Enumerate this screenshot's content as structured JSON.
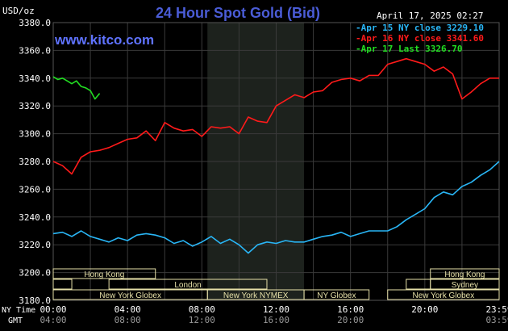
{
  "chart_data": {
    "type": "line",
    "title": "24 Hour Spot Gold (Bid)",
    "ylabel": "USD/oz",
    "watermark": "www.kitco.com",
    "timestamp": "April 17, 2025 02:27",
    "ylim": [
      3180,
      3380
    ],
    "y_ticks": [
      "3380.0",
      "3360.0",
      "3340.0",
      "3320.0",
      "3300.0",
      "3280.0",
      "3260.0",
      "3240.0",
      "3220.0",
      "3200.0",
      "3180.0"
    ],
    "x_ticks_ny": [
      "00:00",
      "04:00",
      "08:00",
      "12:00",
      "16:00",
      "20:00",
      "23:59"
    ],
    "x_ticks_gmt": [
      "04:00",
      "08:00",
      "12:00",
      "16:00",
      "20:00",
      "",
      "03:59"
    ],
    "x_label_ny": "NY Time",
    "x_label_gmt": "GMT",
    "grid": true,
    "legend_position": "top-right",
    "colors": {
      "background": "#000000",
      "grid": "#3a3a3a",
      "title": "#4a5cd6",
      "watermark": "#5f73ff",
      "session_bar": "#e6e0a8"
    },
    "series": [
      {
        "name": "Apr 15 NY close 3229.10",
        "color": "#29b6f6",
        "x": [
          0,
          0.5,
          1,
          1.5,
          2,
          2.5,
          3,
          3.5,
          4,
          4.5,
          5,
          5.5,
          6,
          6.5,
          7,
          7.5,
          8,
          8.5,
          9,
          9.5,
          10,
          10.5,
          11,
          11.5,
          12,
          12.5,
          13,
          13.5,
          14,
          14.5,
          15,
          15.5,
          16,
          16.5,
          17,
          17.5,
          18,
          18.5,
          19,
          19.5,
          20,
          20.5,
          21,
          21.5,
          22,
          22.5,
          23,
          23.5,
          24
        ],
        "y": [
          3228,
          3229,
          3226,
          3230,
          3226,
          3224,
          3222,
          3225,
          3223,
          3227,
          3228,
          3227,
          3225,
          3221,
          3223,
          3219,
          3222,
          3226,
          3221,
          3224,
          3220,
          3214,
          3220,
          3222,
          3221,
          3223,
          3222,
          3222,
          3224,
          3226,
          3227,
          3229,
          3226,
          3228,
          3230,
          3230,
          3230,
          3233,
          3238,
          3242,
          3246,
          3254,
          3258,
          3256,
          3262,
          3265,
          3270,
          3274,
          3280
        ]
      },
      {
        "name": "Apr 16 NY close 3341.60",
        "color": "#ff1a1a",
        "x": [
          0,
          0.5,
          1,
          1.5,
          2,
          2.5,
          3,
          3.5,
          4,
          4.5,
          5,
          5.5,
          6,
          6.5,
          7,
          7.5,
          8,
          8.5,
          9,
          9.5,
          10,
          10.5,
          11,
          11.5,
          12,
          12.5,
          13,
          13.5,
          14,
          14.5,
          15,
          15.5,
          16,
          16.5,
          17,
          17.5,
          18,
          18.5,
          19,
          19.5,
          20,
          20.5,
          21,
          21.5,
          22,
          22.5,
          23,
          23.5,
          24
        ],
        "y": [
          3280,
          3277,
          3271,
          3283,
          3287,
          3288,
          3290,
          3293,
          3296,
          3297,
          3302,
          3295,
          3308,
          3304,
          3302,
          3303,
          3298,
          3305,
          3304,
          3305,
          3300,
          3312,
          3309,
          3308,
          3320,
          3324,
          3328,
          3326,
          3330,
          3331,
          3337,
          3339,
          3340,
          3338,
          3342,
          3342,
          3350,
          3352,
          3354,
          3352,
          3350,
          3345,
          3348,
          3343,
          3325,
          3330,
          3336,
          3340,
          3340
        ]
      },
      {
        "name": "Apr 17 Last 3326.70",
        "color": "#22dd22",
        "x": [
          0,
          0.25,
          0.5,
          0.75,
          1,
          1.25,
          1.5,
          1.75,
          2,
          2.25,
          2.5
        ],
        "y": [
          3341,
          3339,
          3340,
          3338,
          3336,
          3338,
          3334,
          3333,
          3331,
          3325,
          3329
        ]
      }
    ],
    "sessions_row1": [
      {
        "label": "Hong Kong",
        "start": 0,
        "end": 5.5
      },
      {
        "label": "Hong Kong",
        "start": 20.3,
        "end": 24
      }
    ],
    "sessions_row2": [
      {
        "label": "",
        "start": 0,
        "end": 1
      },
      {
        "label": "London",
        "start": 3,
        "end": 11.5
      },
      {
        "label": "",
        "start": 19,
        "end": 20.3
      },
      {
        "label": "Sydney",
        "start": 20.3,
        "end": 24
      }
    ],
    "sessions_row3": [
      {
        "label": "New York Globex",
        "start": 0,
        "end": 8.3
      },
      {
        "label": "New York NYMEX",
        "start": 8.3,
        "end": 13.5
      },
      {
        "label": "NY Globex",
        "start": 13.5,
        "end": 17
      },
      {
        "label": "New York Globex",
        "start": 18,
        "end": 24
      }
    ],
    "highlight_hours": [
      8.3,
      13.5
    ]
  }
}
